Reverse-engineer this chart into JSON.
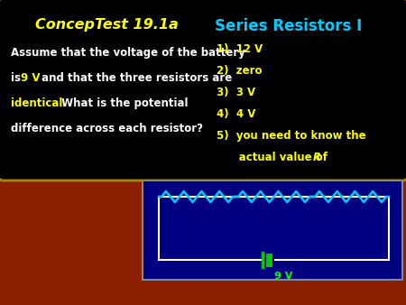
{
  "bg_color": "#8B2000",
  "title_left": "ConcepTest 19.1a",
  "title_right": "Series Resistors I",
  "title_left_color": "#FFFF00",
  "title_right_color": "#00CCFF",
  "black_box_color": "#000000",
  "body_text_color": "#FFFFFF",
  "highlight_color": "#FFFF00",
  "answer_color": "#FFFF00",
  "answers": [
    "1)  12 V",
    "2)  zero",
    "3)  3 V",
    "4)  4 V"
  ],
  "answer5_line1": "5)  you need to know the",
  "answer5_line2": "      actual value of ",
  "answer5_R": "R",
  "circuit_bg": "#000080",
  "circuit_wire_color": "#FFFFFF",
  "resistor_color": "#00CCFF",
  "battery_color": "#00CC00",
  "battery_label": "9 V",
  "battery_label_color": "#00FF00",
  "box_edge_color": "#AA8800"
}
